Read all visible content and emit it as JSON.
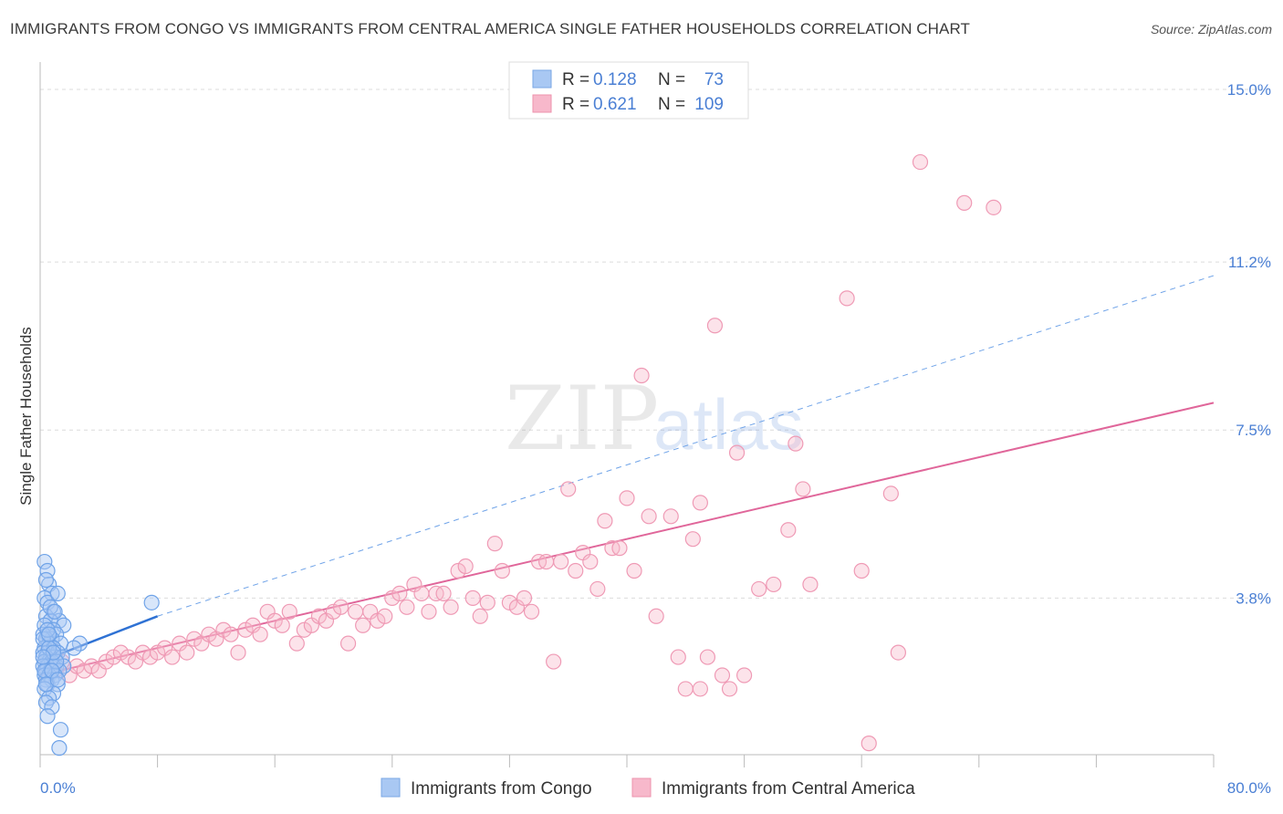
{
  "header": {
    "title": "IMMIGRANTS FROM CONGO VS IMMIGRANTS FROM CENTRAL AMERICA SINGLE FATHER HOUSEHOLDS CORRELATION CHART",
    "source": "Source: ZipAtlas.com"
  },
  "watermark": {
    "zip": "ZIP",
    "atlas": "atlas"
  },
  "legend": {
    "rows": [
      {
        "r_label": "R =",
        "r_value": "0.128",
        "n_label": "N =",
        "n_value": "73",
        "color": "#a9c8f3"
      },
      {
        "r_label": "R =",
        "r_value": "0.621",
        "n_label": "N =",
        "n_value": "109",
        "color": "#f7b8cb"
      }
    ]
  },
  "chart_data": {
    "type": "scatter",
    "title": "IMMIGRANTS FROM CONGO VS IMMIGRANTS FROM CENTRAL AMERICA SINGLE FATHER HOUSEHOLDS CORRELATION CHART",
    "xlabel": "",
    "ylabel": "Single Father Households",
    "xlim": [
      0,
      80
    ],
    "ylim": [
      0,
      15.5
    ],
    "x_tick_labels": [
      "0.0%",
      "80.0%"
    ],
    "y_ticks": [
      3.8,
      7.5,
      11.2,
      15.0
    ],
    "y_tick_labels": [
      "3.8%",
      "7.5%",
      "11.2%",
      "15.0%"
    ],
    "grid": true,
    "legend_position": "top-center",
    "series": [
      {
        "name": "Immigrants from Congo",
        "color": "#6fa3e8",
        "trend": {
          "x": [
            0,
            8
          ],
          "y": [
            2.4,
            3.4
          ],
          "style": "solid"
        },
        "trend_extension": {
          "x": [
            8,
            80
          ],
          "y": [
            3.4,
            10.9
          ],
          "style": "dashed"
        },
        "points": [
          [
            0.3,
            4.6
          ],
          [
            0.5,
            4.4
          ],
          [
            0.6,
            4.1
          ],
          [
            0.4,
            4.2
          ],
          [
            0.8,
            3.9
          ],
          [
            0.3,
            3.8
          ],
          [
            0.5,
            3.7
          ],
          [
            1.2,
            3.9
          ],
          [
            0.9,
            3.5
          ],
          [
            0.4,
            3.4
          ],
          [
            1.3,
            3.3
          ],
          [
            0.7,
            3.3
          ],
          [
            1.6,
            3.2
          ],
          [
            0.3,
            3.2
          ],
          [
            0.9,
            3.1
          ],
          [
            0.5,
            3.0
          ],
          [
            1.1,
            3.0
          ],
          [
            0.2,
            3.0
          ],
          [
            0.8,
            2.9
          ],
          [
            0.4,
            2.9
          ],
          [
            0.6,
            2.8
          ],
          [
            1.4,
            2.8
          ],
          [
            2.7,
            2.8
          ],
          [
            0.3,
            2.7
          ],
          [
            0.9,
            2.7
          ],
          [
            2.3,
            2.7
          ],
          [
            0.5,
            2.6
          ],
          [
            1.2,
            2.6
          ],
          [
            0.2,
            2.6
          ],
          [
            0.7,
            2.5
          ],
          [
            1.0,
            2.5
          ],
          [
            0.4,
            2.5
          ],
          [
            1.5,
            2.5
          ],
          [
            0.6,
            2.4
          ],
          [
            0.3,
            2.4
          ],
          [
            0.8,
            2.4
          ],
          [
            1.1,
            2.3
          ],
          [
            0.5,
            2.3
          ],
          [
            0.2,
            2.3
          ],
          [
            0.9,
            2.3
          ],
          [
            1.6,
            2.3
          ],
          [
            0.4,
            2.2
          ],
          [
            0.7,
            2.2
          ],
          [
            1.3,
            2.2
          ],
          [
            0.3,
            2.1
          ],
          [
            0.6,
            2.1
          ],
          [
            1.0,
            2.1
          ],
          [
            0.4,
            2.0
          ],
          [
            0.8,
            2.0
          ],
          [
            0.5,
            1.9
          ],
          [
            1.2,
            1.9
          ],
          [
            0.3,
            1.8
          ],
          [
            0.9,
            1.7
          ],
          [
            0.6,
            1.6
          ],
          [
            0.4,
            1.5
          ],
          [
            0.8,
            1.4
          ],
          [
            0.5,
            1.2
          ],
          [
            1.4,
            0.9
          ],
          [
            1.3,
            0.5
          ],
          [
            7.6,
            3.7
          ],
          [
            0.2,
            2.9
          ],
          [
            0.7,
            3.6
          ],
          [
            1.0,
            3.5
          ],
          [
            0.3,
            2.2
          ],
          [
            0.6,
            2.7
          ],
          [
            1.1,
            2.4
          ],
          [
            0.4,
            1.9
          ],
          [
            0.9,
            2.6
          ],
          [
            0.5,
            3.1
          ],
          [
            0.2,
            2.5
          ],
          [
            0.8,
            2.2
          ],
          [
            1.2,
            2.0
          ],
          [
            0.6,
            3.0
          ]
        ]
      },
      {
        "name": "Immigrants from Central America",
        "color": "#f09ab5",
        "trend": {
          "x": [
            0,
            80
          ],
          "y": [
            2.1,
            8.1
          ],
          "style": "solid"
        },
        "points": [
          [
            1.0,
            2.2
          ],
          [
            1.5,
            2.4
          ],
          [
            2.0,
            2.1
          ],
          [
            2.5,
            2.3
          ],
          [
            3.0,
            2.2
          ],
          [
            3.5,
            2.3
          ],
          [
            4.0,
            2.2
          ],
          [
            4.5,
            2.4
          ],
          [
            5.0,
            2.5
          ],
          [
            5.5,
            2.6
          ],
          [
            6.0,
            2.5
          ],
          [
            6.5,
            2.4
          ],
          [
            7.0,
            2.6
          ],
          [
            7.5,
            2.5
          ],
          [
            8.0,
            2.6
          ],
          [
            8.5,
            2.7
          ],
          [
            9.0,
            2.5
          ],
          [
            9.5,
            2.8
          ],
          [
            10.0,
            2.6
          ],
          [
            10.5,
            2.9
          ],
          [
            11.0,
            2.8
          ],
          [
            11.5,
            3.0
          ],
          [
            12.0,
            2.9
          ],
          [
            12.5,
            3.1
          ],
          [
            13.0,
            3.0
          ],
          [
            13.5,
            2.6
          ],
          [
            14.0,
            3.1
          ],
          [
            14.5,
            3.2
          ],
          [
            15.0,
            3.0
          ],
          [
            15.5,
            3.5
          ],
          [
            16.0,
            3.3
          ],
          [
            16.5,
            3.2
          ],
          [
            17.0,
            3.5
          ],
          [
            17.5,
            2.8
          ],
          [
            18.0,
            3.1
          ],
          [
            18.5,
            3.2
          ],
          [
            19.0,
            3.4
          ],
          [
            19.5,
            3.3
          ],
          [
            20.0,
            3.5
          ],
          [
            20.5,
            3.6
          ],
          [
            21.0,
            2.8
          ],
          [
            21.5,
            3.5
          ],
          [
            22.0,
            3.2
          ],
          [
            22.5,
            3.5
          ],
          [
            23.0,
            3.3
          ],
          [
            23.5,
            3.4
          ],
          [
            24.0,
            3.8
          ],
          [
            24.5,
            3.9
          ],
          [
            25.0,
            3.6
          ],
          [
            25.5,
            4.1
          ],
          [
            26.0,
            3.9
          ],
          [
            26.5,
            3.5
          ],
          [
            27.0,
            3.9
          ],
          [
            27.5,
            3.9
          ],
          [
            28.0,
            3.6
          ],
          [
            28.5,
            4.4
          ],
          [
            29.0,
            4.5
          ],
          [
            29.5,
            3.8
          ],
          [
            30.0,
            3.4
          ],
          [
            30.5,
            3.7
          ],
          [
            31.0,
            5.0
          ],
          [
            31.5,
            4.4
          ],
          [
            32.0,
            3.7
          ],
          [
            32.5,
            3.6
          ],
          [
            33.0,
            3.8
          ],
          [
            33.5,
            3.5
          ],
          [
            34.0,
            4.6
          ],
          [
            34.5,
            4.6
          ],
          [
            35.0,
            2.4
          ],
          [
            35.5,
            4.6
          ],
          [
            36.0,
            6.2
          ],
          [
            36.5,
            4.4
          ],
          [
            37.0,
            4.8
          ],
          [
            37.5,
            4.6
          ],
          [
            38.0,
            4.0
          ],
          [
            38.5,
            5.5
          ],
          [
            39.0,
            4.9
          ],
          [
            39.5,
            4.9
          ],
          [
            40.0,
            6.0
          ],
          [
            40.5,
            4.4
          ],
          [
            41.0,
            8.7
          ],
          [
            41.5,
            5.6
          ],
          [
            42.0,
            3.4
          ],
          [
            43.0,
            5.6
          ],
          [
            43.5,
            2.5
          ],
          [
            44.0,
            1.8
          ],
          [
            44.5,
            5.1
          ],
          [
            45.0,
            5.9
          ],
          [
            45.5,
            2.5
          ],
          [
            46.0,
            9.8
          ],
          [
            46.5,
            2.1
          ],
          [
            47.0,
            1.8
          ],
          [
            47.5,
            7.0
          ],
          [
            48.0,
            2.1
          ],
          [
            49.0,
            4.0
          ],
          [
            50.0,
            4.1
          ],
          [
            51.0,
            5.3
          ],
          [
            51.5,
            7.2
          ],
          [
            52.0,
            6.2
          ],
          [
            52.5,
            4.1
          ],
          [
            55.0,
            10.4
          ],
          [
            56.0,
            4.4
          ],
          [
            56.5,
            0.6
          ],
          [
            58.0,
            6.1
          ],
          [
            58.5,
            2.6
          ],
          [
            60.0,
            13.4
          ],
          [
            63.0,
            12.5
          ],
          [
            65.0,
            12.4
          ],
          [
            45.0,
            1.8
          ]
        ]
      }
    ]
  },
  "bottom_legend": [
    {
      "label": "Immigrants from Congo",
      "color": "#a9c8f3"
    },
    {
      "label": "Immigrants from Central America",
      "color": "#f7b8cb"
    }
  ]
}
